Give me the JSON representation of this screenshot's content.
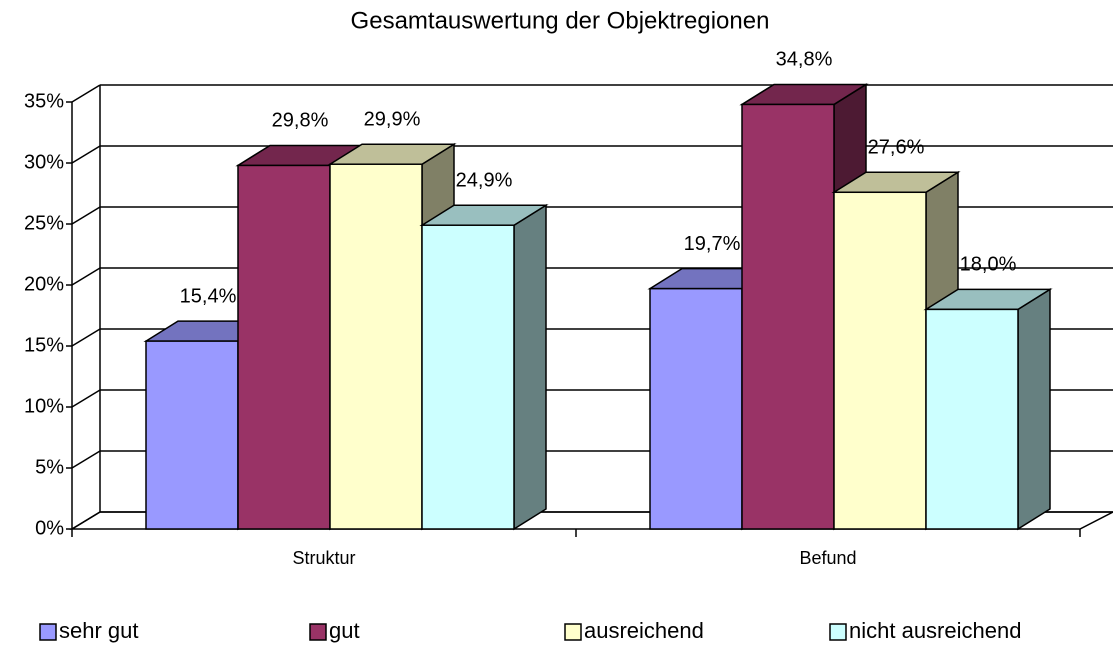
{
  "chart_data": {
    "type": "bar3d",
    "title": "Gesamtauswertung der Objektregionen",
    "categories": [
      "Struktur",
      "Befund"
    ],
    "series": [
      {
        "name": "sehr gut",
        "color": "#9999ff",
        "values": [
          15.4,
          19.7
        ],
        "value_labels": [
          "15,4%",
          "19,7%"
        ]
      },
      {
        "name": "gut",
        "color": "#993366",
        "values": [
          29.8,
          34.8
        ],
        "value_labels": [
          "29,8%",
          "34,8%"
        ]
      },
      {
        "name": "ausreichend",
        "color": "#ffffcc",
        "values": [
          29.9,
          27.6
        ],
        "value_labels": [
          "29,9%",
          "27,6%"
        ]
      },
      {
        "name": "nicht ausreichend",
        "color": "#ccffff",
        "values": [
          24.9,
          18.0
        ],
        "value_labels": [
          "24,9%",
          "18,0%"
        ]
      }
    ],
    "ylim": [
      0,
      35
    ],
    "yticks": [
      {
        "value": 0,
        "label": "0%"
      },
      {
        "value": 5,
        "label": "5%"
      },
      {
        "value": 10,
        "label": "10%"
      },
      {
        "value": 15,
        "label": "15%"
      },
      {
        "value": 20,
        "label": "20%"
      },
      {
        "value": 25,
        "label": "25%"
      },
      {
        "value": 30,
        "label": "30%"
      },
      {
        "value": 35,
        "label": "35%"
      }
    ],
    "grid": true,
    "legend": "bottom"
  }
}
